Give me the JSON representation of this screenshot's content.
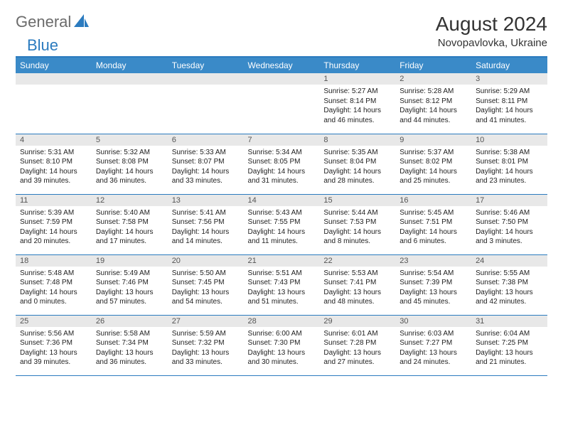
{
  "brand": {
    "part1": "General",
    "part2": "Blue"
  },
  "colors": {
    "accent": "#3a8ac8",
    "rule": "#2b7bbf",
    "daybg": "#e8e8e8",
    "text": "#222222"
  },
  "title": "August 2024",
  "location": "Novopavlovka, Ukraine",
  "day_headers": [
    "Sunday",
    "Monday",
    "Tuesday",
    "Wednesday",
    "Thursday",
    "Friday",
    "Saturday"
  ],
  "weeks": [
    [
      {
        "n": "",
        "lines": []
      },
      {
        "n": "",
        "lines": []
      },
      {
        "n": "",
        "lines": []
      },
      {
        "n": "",
        "lines": []
      },
      {
        "n": "1",
        "lines": [
          "Sunrise: 5:27 AM",
          "Sunset: 8:14 PM",
          "Daylight: 14 hours",
          "and 46 minutes."
        ]
      },
      {
        "n": "2",
        "lines": [
          "Sunrise: 5:28 AM",
          "Sunset: 8:12 PM",
          "Daylight: 14 hours",
          "and 44 minutes."
        ]
      },
      {
        "n": "3",
        "lines": [
          "Sunrise: 5:29 AM",
          "Sunset: 8:11 PM",
          "Daylight: 14 hours",
          "and 41 minutes."
        ]
      }
    ],
    [
      {
        "n": "4",
        "lines": [
          "Sunrise: 5:31 AM",
          "Sunset: 8:10 PM",
          "Daylight: 14 hours",
          "and 39 minutes."
        ]
      },
      {
        "n": "5",
        "lines": [
          "Sunrise: 5:32 AM",
          "Sunset: 8:08 PM",
          "Daylight: 14 hours",
          "and 36 minutes."
        ]
      },
      {
        "n": "6",
        "lines": [
          "Sunrise: 5:33 AM",
          "Sunset: 8:07 PM",
          "Daylight: 14 hours",
          "and 33 minutes."
        ]
      },
      {
        "n": "7",
        "lines": [
          "Sunrise: 5:34 AM",
          "Sunset: 8:05 PM",
          "Daylight: 14 hours",
          "and 31 minutes."
        ]
      },
      {
        "n": "8",
        "lines": [
          "Sunrise: 5:35 AM",
          "Sunset: 8:04 PM",
          "Daylight: 14 hours",
          "and 28 minutes."
        ]
      },
      {
        "n": "9",
        "lines": [
          "Sunrise: 5:37 AM",
          "Sunset: 8:02 PM",
          "Daylight: 14 hours",
          "and 25 minutes."
        ]
      },
      {
        "n": "10",
        "lines": [
          "Sunrise: 5:38 AM",
          "Sunset: 8:01 PM",
          "Daylight: 14 hours",
          "and 23 minutes."
        ]
      }
    ],
    [
      {
        "n": "11",
        "lines": [
          "Sunrise: 5:39 AM",
          "Sunset: 7:59 PM",
          "Daylight: 14 hours",
          "and 20 minutes."
        ]
      },
      {
        "n": "12",
        "lines": [
          "Sunrise: 5:40 AM",
          "Sunset: 7:58 PM",
          "Daylight: 14 hours",
          "and 17 minutes."
        ]
      },
      {
        "n": "13",
        "lines": [
          "Sunrise: 5:41 AM",
          "Sunset: 7:56 PM",
          "Daylight: 14 hours",
          "and 14 minutes."
        ]
      },
      {
        "n": "14",
        "lines": [
          "Sunrise: 5:43 AM",
          "Sunset: 7:55 PM",
          "Daylight: 14 hours",
          "and 11 minutes."
        ]
      },
      {
        "n": "15",
        "lines": [
          "Sunrise: 5:44 AM",
          "Sunset: 7:53 PM",
          "Daylight: 14 hours",
          "and 8 minutes."
        ]
      },
      {
        "n": "16",
        "lines": [
          "Sunrise: 5:45 AM",
          "Sunset: 7:51 PM",
          "Daylight: 14 hours",
          "and 6 minutes."
        ]
      },
      {
        "n": "17",
        "lines": [
          "Sunrise: 5:46 AM",
          "Sunset: 7:50 PM",
          "Daylight: 14 hours",
          "and 3 minutes."
        ]
      }
    ],
    [
      {
        "n": "18",
        "lines": [
          "Sunrise: 5:48 AM",
          "Sunset: 7:48 PM",
          "Daylight: 14 hours",
          "and 0 minutes."
        ]
      },
      {
        "n": "19",
        "lines": [
          "Sunrise: 5:49 AM",
          "Sunset: 7:46 PM",
          "Daylight: 13 hours",
          "and 57 minutes."
        ]
      },
      {
        "n": "20",
        "lines": [
          "Sunrise: 5:50 AM",
          "Sunset: 7:45 PM",
          "Daylight: 13 hours",
          "and 54 minutes."
        ]
      },
      {
        "n": "21",
        "lines": [
          "Sunrise: 5:51 AM",
          "Sunset: 7:43 PM",
          "Daylight: 13 hours",
          "and 51 minutes."
        ]
      },
      {
        "n": "22",
        "lines": [
          "Sunrise: 5:53 AM",
          "Sunset: 7:41 PM",
          "Daylight: 13 hours",
          "and 48 minutes."
        ]
      },
      {
        "n": "23",
        "lines": [
          "Sunrise: 5:54 AM",
          "Sunset: 7:39 PM",
          "Daylight: 13 hours",
          "and 45 minutes."
        ]
      },
      {
        "n": "24",
        "lines": [
          "Sunrise: 5:55 AM",
          "Sunset: 7:38 PM",
          "Daylight: 13 hours",
          "and 42 minutes."
        ]
      }
    ],
    [
      {
        "n": "25",
        "lines": [
          "Sunrise: 5:56 AM",
          "Sunset: 7:36 PM",
          "Daylight: 13 hours",
          "and 39 minutes."
        ]
      },
      {
        "n": "26",
        "lines": [
          "Sunrise: 5:58 AM",
          "Sunset: 7:34 PM",
          "Daylight: 13 hours",
          "and 36 minutes."
        ]
      },
      {
        "n": "27",
        "lines": [
          "Sunrise: 5:59 AM",
          "Sunset: 7:32 PM",
          "Daylight: 13 hours",
          "and 33 minutes."
        ]
      },
      {
        "n": "28",
        "lines": [
          "Sunrise: 6:00 AM",
          "Sunset: 7:30 PM",
          "Daylight: 13 hours",
          "and 30 minutes."
        ]
      },
      {
        "n": "29",
        "lines": [
          "Sunrise: 6:01 AM",
          "Sunset: 7:28 PM",
          "Daylight: 13 hours",
          "and 27 minutes."
        ]
      },
      {
        "n": "30",
        "lines": [
          "Sunrise: 6:03 AM",
          "Sunset: 7:27 PM",
          "Daylight: 13 hours",
          "and 24 minutes."
        ]
      },
      {
        "n": "31",
        "lines": [
          "Sunrise: 6:04 AM",
          "Sunset: 7:25 PM",
          "Daylight: 13 hours",
          "and 21 minutes."
        ]
      }
    ]
  ]
}
